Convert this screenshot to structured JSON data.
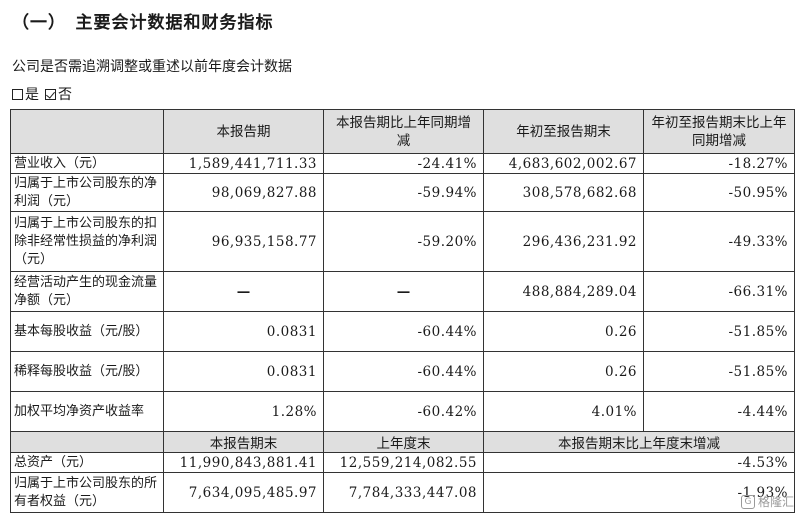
{
  "title": "（一）　主要会计数据和财务指标",
  "question": "公司是否需追溯调整或重述以前年度会计数据",
  "options": [
    {
      "label": "是",
      "checked": false
    },
    {
      "label": "否",
      "checked": true
    }
  ],
  "table": {
    "headers": [
      "",
      "本报告期",
      "本报告期比上年同期增减",
      "年初至报告期末",
      "年初至报告期末比上年同期增减"
    ],
    "rows": [
      {
        "label": "营业收入（元）",
        "cells": [
          "1,589,441,711.33",
          "-24.41%",
          "4,683,602,002.67",
          "-18.27%"
        ]
      },
      {
        "label": "归属于上市公司股东的净利润（元）",
        "cells": [
          "98,069,827.88",
          "-59.94%",
          "308,578,682.68",
          "-50.95%"
        ]
      },
      {
        "label": "归属于上市公司股东的扣除非经常性损益的净利润（元）",
        "cells": [
          "96,935,158.77",
          "-59.20%",
          "296,436,231.92",
          "-49.33%"
        ]
      },
      {
        "label": "经营活动产生的现金流量净额（元）",
        "cells": [
          "—",
          "—",
          "488,884,289.04",
          "-66.31%"
        ]
      },
      {
        "label": "基本每股收益（元/股）",
        "cells": [
          "0.0831",
          "-60.44%",
          "0.26",
          "-51.85%"
        ]
      },
      {
        "label": "稀释每股收益（元/股）",
        "cells": [
          "0.0831",
          "-60.44%",
          "0.26",
          "-51.85%"
        ]
      },
      {
        "label": "加权平均净资产收益率",
        "cells": [
          "1.28%",
          "-60.42%",
          "4.01%",
          "-4.44%"
        ]
      }
    ],
    "subheaders": [
      "",
      "本报告期末",
      "上年度末",
      "本报告期末比上年度末增减"
    ],
    "bottom_rows": [
      {
        "label": "总资产（元）",
        "cells": [
          "11,990,843,881.41",
          "12,559,214,082.55",
          "-4.53%"
        ]
      },
      {
        "label": "归属于上市公司股东的所有者权益（元）",
        "cells": [
          "7,634,095,485.97",
          "7,784,333,447.08",
          "-1.93%"
        ]
      }
    ]
  },
  "watermark": "格隆汇"
}
